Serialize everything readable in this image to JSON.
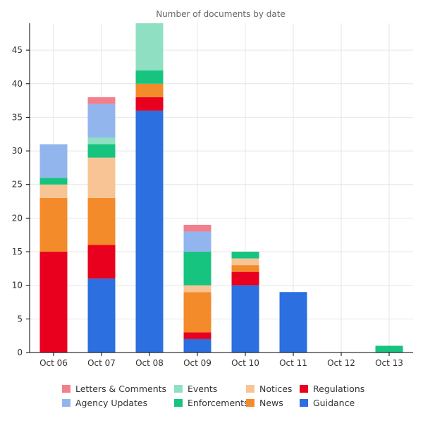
{
  "chart_data": {
    "type": "bar",
    "stacked": true,
    "title": "Number of documents by date",
    "xlabel": "",
    "ylabel": "",
    "ylim": [
      0,
      49
    ],
    "yticks": [
      0,
      5,
      10,
      15,
      20,
      25,
      30,
      35,
      40,
      45
    ],
    "grid": true,
    "legend_position": "bottom",
    "categories": [
      "Oct 06",
      "Oct 07",
      "Oct 08",
      "Oct 09",
      "Oct 10",
      "Oct 11",
      "Oct 12",
      "Oct 13"
    ],
    "series": [
      {
        "name": "Guidance",
        "color": "#2b6fe0",
        "values": [
          0,
          11,
          36,
          2,
          10,
          9,
          0,
          0
        ]
      },
      {
        "name": "Regulations",
        "color": "#e8001e",
        "values": [
          15,
          5,
          2,
          1,
          2,
          0,
          0,
          0
        ]
      },
      {
        "name": "News",
        "color": "#f38b2a",
        "values": [
          8,
          7,
          2,
          6,
          1,
          0,
          0,
          0
        ]
      },
      {
        "name": "Notices",
        "color": "#f8c495",
        "values": [
          2,
          6,
          0,
          1,
          1,
          0,
          0,
          0
        ]
      },
      {
        "name": "Enforcements",
        "color": "#16c47f",
        "values": [
          1,
          2,
          2,
          5,
          1,
          0,
          0,
          1
        ]
      },
      {
        "name": "Events",
        "color": "#8fe0c2",
        "values": [
          0,
          1,
          7,
          0,
          0,
          0,
          0,
          0
        ]
      },
      {
        "name": "Agency Updates",
        "color": "#93b5ee",
        "values": [
          5,
          5,
          0,
          3,
          0,
          0,
          0,
          0
        ]
      },
      {
        "name": "Letters & Comments",
        "color": "#f27f8c",
        "values": [
          0,
          1,
          0,
          1,
          0,
          0,
          0,
          0
        ]
      }
    ],
    "legend_order": [
      "Letters & Comments",
      "Events",
      "Notices",
      "Regulations",
      "Agency Updates",
      "Enforcements",
      "News",
      "Guidance"
    ]
  }
}
